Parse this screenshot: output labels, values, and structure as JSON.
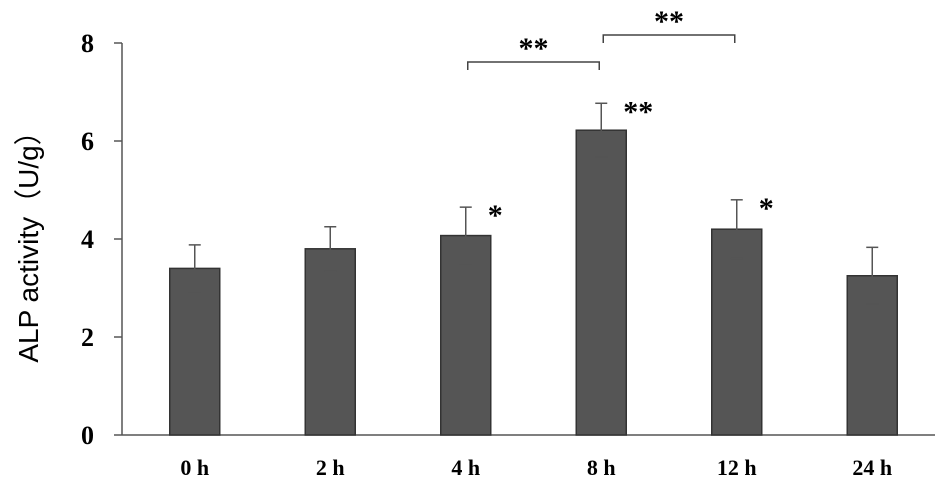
{
  "chart_data": {
    "type": "bar",
    "ylabel": "ALP activity（U/g）",
    "xlabel": "",
    "title": "",
    "categories": [
      "0 h",
      "2 h",
      "4 h",
      "8 h",
      "12 h",
      "24 h"
    ],
    "values": [
      3.4,
      3.8,
      4.07,
      6.22,
      4.2,
      3.25
    ],
    "errors": [
      0.48,
      0.45,
      0.58,
      0.55,
      0.6,
      0.58
    ],
    "significance": [
      "",
      "",
      "*",
      "**",
      "*",
      ""
    ],
    "brackets": [
      {
        "from": "4 h",
        "to": "8 h",
        "label": "**"
      },
      {
        "from": "8 h",
        "to": "12 h",
        "label": "**"
      }
    ],
    "ylim": [
      0,
      8
    ],
    "yticks": [
      0,
      2,
      4,
      6,
      8
    ],
    "bar_color": "#555555",
    "grid": false
  }
}
